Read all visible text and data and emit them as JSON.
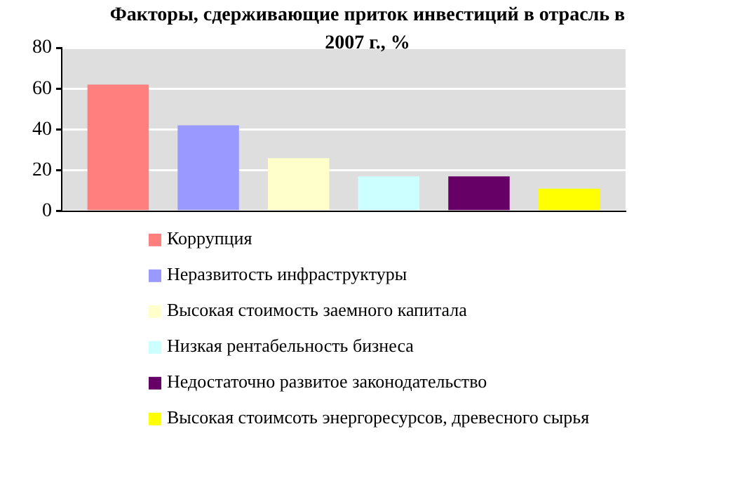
{
  "chart_data": {
    "type": "bar",
    "title": "Факторы, сдерживающие приток инвестиций в отрасль в 2007 г., %",
    "categories": [
      null
    ],
    "series": [
      {
        "name": "Коррупция",
        "color": "#ff7f7f",
        "values": [
          62
        ]
      },
      {
        "name": "Неразвитость инфраструктуры",
        "color": "#9999ff",
        "values": [
          42
        ]
      },
      {
        "name": "Высокая стоимость заемного капитала",
        "color": "#ffffcc",
        "values": [
          26
        ]
      },
      {
        "name": "Низкая рентабельность бизнеса",
        "color": "#ccffff",
        "values": [
          17
        ]
      },
      {
        "name": "Недостаточно развитое законодательство",
        "color": "#660066",
        "values": [
          17
        ]
      },
      {
        "name": "Высокая стоимсоть энергоресурсов, древесного сырья",
        "color": "#ffff00",
        "values": [
          11
        ]
      }
    ],
    "ylim": [
      0,
      80
    ],
    "yticks": [
      0,
      20,
      40,
      60,
      80
    ],
    "grid": "y",
    "legend": "bottom"
  }
}
